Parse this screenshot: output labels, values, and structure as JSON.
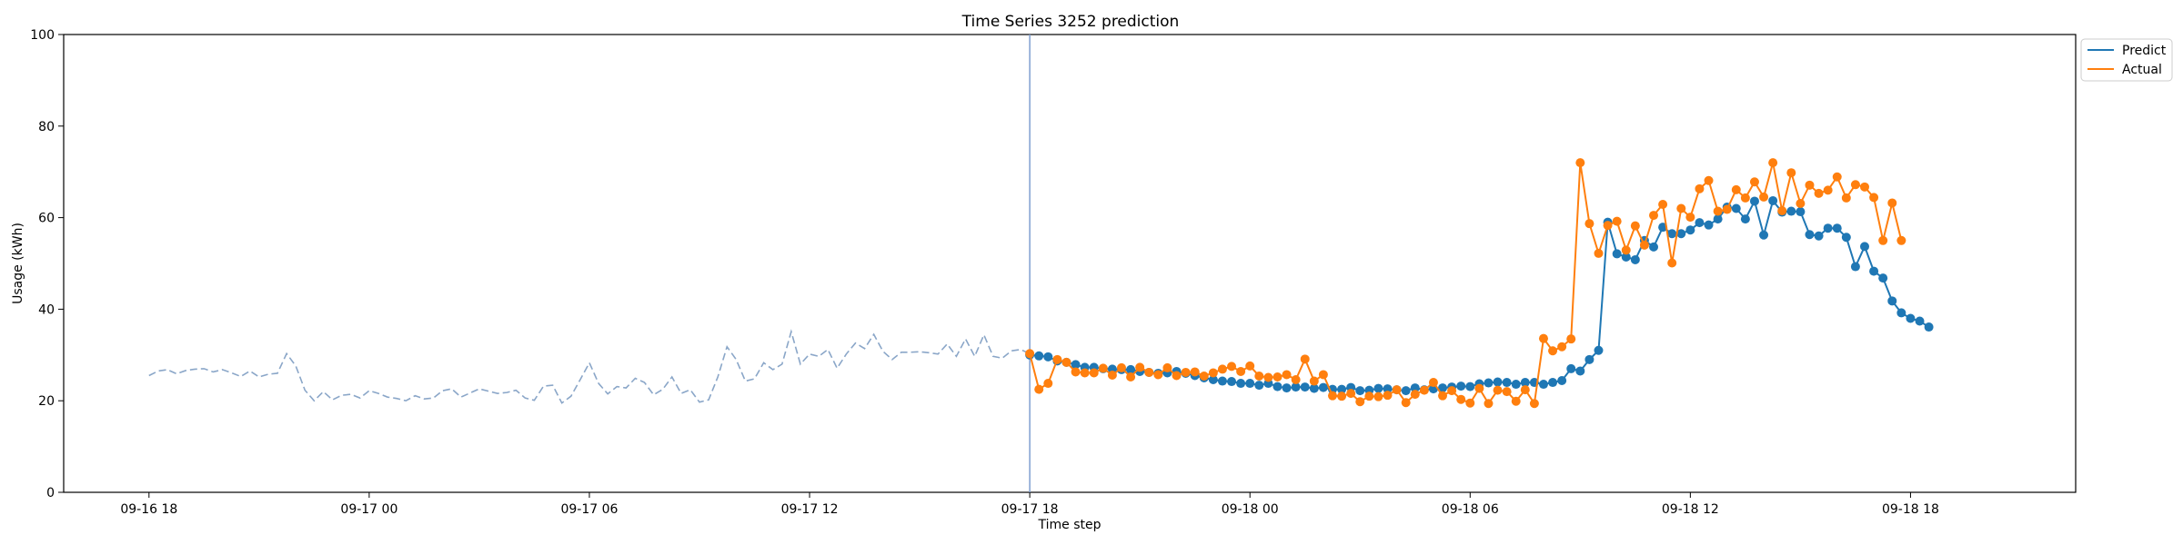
{
  "chart_data": {
    "type": "line",
    "title": "Time Series 3252 prediction",
    "xlabel": "Time step",
    "ylabel": "Usage (kWh)",
    "ylim": [
      0,
      100
    ],
    "yticks": [
      0,
      20,
      40,
      60,
      80,
      100
    ],
    "xlim": [
      -9.3,
      210
    ],
    "xticks": [
      {
        "t": 0,
        "label": "09-16 18"
      },
      {
        "t": 24,
        "label": "09-17 00"
      },
      {
        "t": 48,
        "label": "09-17 06"
      },
      {
        "t": 72,
        "label": "09-17 12"
      },
      {
        "t": 96,
        "label": "09-17 18"
      },
      {
        "t": 120,
        "label": "09-18 00"
      },
      {
        "t": 144,
        "label": "09-18 06"
      },
      {
        "t": 168,
        "label": "09-18 12"
      },
      {
        "t": 192,
        "label": "09-18 18"
      }
    ],
    "step_hours": 0.25,
    "forecast_start_t": 96,
    "history": {
      "t_start": 0,
      "style": "dashed",
      "color": "#8aa6c8",
      "values": [
        25.5,
        26.5,
        26.8,
        25.9,
        26.6,
        26.9,
        27.0,
        26.3,
        26.8,
        26.1,
        25.3,
        26.5,
        25.2,
        25.8,
        26.0,
        30.3,
        27.6,
        22.3,
        20.0,
        22.0,
        20.2,
        21.2,
        21.4,
        20.6,
        22.2,
        21.6,
        20.8,
        20.5,
        20.0,
        21.1,
        20.4,
        20.6,
        22.2,
        22.6,
        20.8,
        21.7,
        22.6,
        22.1,
        21.6,
        21.8,
        22.3,
        20.6,
        20.1,
        23.2,
        23.4,
        19.5,
        21.0,
        24.6,
        28.3,
        23.8,
        21.5,
        23.1,
        22.8,
        24.9,
        24.0,
        21.3,
        22.5,
        25.2,
        21.6,
        22.4,
        19.7,
        20.2,
        25.2,
        31.8,
        29.0,
        24.3,
        24.8,
        28.3,
        26.8,
        28.0,
        35.1,
        28.0,
        30.2,
        29.7,
        31.2,
        27.1,
        30.2,
        32.6,
        31.4,
        34.5,
        30.8,
        29.0,
        30.6,
        30.6,
        30.7,
        30.5,
        30.2,
        32.4,
        29.7,
        33.5,
        29.7,
        34.4,
        29.7,
        29.3,
        30.9,
        31.2,
        30.3
      ]
    },
    "series": [
      {
        "name": "Predict",
        "color": "#1f77b4",
        "t_start": 96,
        "values": [
          30.0,
          29.8,
          29.6,
          28.7,
          28.4,
          27.9,
          27.3,
          27.3,
          27.0,
          26.9,
          26.8,
          26.8,
          26.4,
          26.2,
          26.0,
          26.1,
          26.4,
          26.0,
          25.5,
          25.0,
          24.6,
          24.3,
          24.2,
          23.8,
          23.8,
          23.4,
          23.8,
          23.1,
          22.8,
          23.0,
          23.0,
          22.7,
          22.9,
          22.5,
          22.5,
          22.9,
          22.2,
          22.3,
          22.7,
          22.6,
          22.4,
          22.2,
          22.8,
          22.4,
          22.6,
          22.8,
          23.0,
          23.2,
          23.1,
          23.7,
          23.9,
          24.1,
          24.0,
          23.6,
          24.0,
          24.0,
          23.6,
          24.0,
          24.4,
          27.0,
          26.5,
          29.0,
          31.0,
          59.0,
          52.1,
          51.4,
          50.8,
          55.0,
          53.6,
          57.9,
          56.5,
          56.5,
          57.3,
          58.9,
          58.4,
          59.7,
          62.3,
          62.0,
          59.7,
          63.6,
          56.2,
          63.7,
          61.2,
          61.4,
          61.3,
          56.3,
          56.0,
          57.7,
          57.7,
          55.7,
          49.3,
          53.7,
          48.3,
          46.8,
          41.8,
          39.2,
          38.0,
          37.4,
          36.1
        ]
      },
      {
        "name": "Actual",
        "color": "#ff7f0e",
        "t_start": 96,
        "values": [
          30.3,
          22.5,
          23.8,
          29.0,
          28.4,
          26.3,
          26.1,
          26.1,
          27.1,
          25.6,
          27.2,
          25.2,
          27.3,
          26.2,
          25.7,
          27.2,
          25.5,
          26.2,
          26.3,
          25.4,
          26.1,
          26.9,
          27.5,
          26.4,
          27.6,
          25.4,
          25.1,
          25.2,
          25.7,
          24.6,
          29.1,
          24.3,
          25.7,
          21.1,
          21.0,
          21.6,
          19.8,
          21.0,
          20.9,
          21.2,
          22.4,
          19.6,
          21.4,
          22.3,
          24.0,
          21.1,
          22.2,
          20.3,
          19.5,
          22.7,
          19.4,
          22.3,
          22.0,
          19.9,
          22.4,
          19.4,
          33.6,
          30.9,
          31.8,
          33.5,
          72.0,
          58.7,
          52.2,
          58.3,
          59.2,
          52.9,
          58.2,
          54.0,
          60.5,
          62.9,
          50.1,
          62.0,
          60.1,
          66.3,
          68.1,
          61.4,
          61.8,
          66.1,
          64.3,
          67.8,
          64.5,
          72.0,
          61.5,
          69.8,
          63.1,
          67.1,
          65.3,
          66.0,
          68.9,
          64.3,
          67.2,
          66.7,
          64.4,
          55.0,
          63.2,
          55.0
        ]
      }
    ],
    "legend": "upper-right-outside",
    "grid": false
  }
}
